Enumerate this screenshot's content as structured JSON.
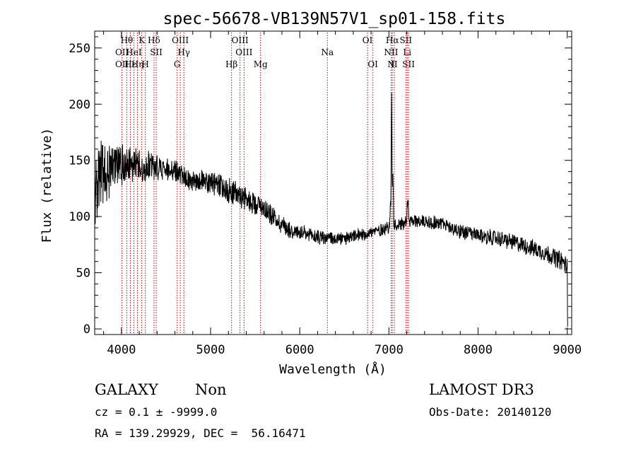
{
  "chart_data": {
    "type": "line",
    "title": "spec-56678-VB139N57V1_sp01-158.fits",
    "xlabel": "Wavelength (Å)",
    "ylabel": "Flux (relative)",
    "xlim": [
      3700,
      9050
    ],
    "ylim": [
      -5,
      265
    ],
    "x_ticks": [
      4000,
      5000,
      6000,
      7000,
      8000,
      9000
    ],
    "y_ticks": [
      0,
      50,
      100,
      150,
      200,
      250
    ],
    "continuum": [
      [
        3700,
        120
      ],
      [
        3750,
        135
      ],
      [
        3800,
        140
      ],
      [
        3850,
        142
      ],
      [
        3900,
        145
      ],
      [
        4000,
        145
      ],
      [
        4100,
        148
      ],
      [
        4200,
        145
      ],
      [
        4300,
        145
      ],
      [
        4400,
        143
      ],
      [
        4500,
        142
      ],
      [
        4600,
        140
      ],
      [
        4700,
        135
      ],
      [
        4800,
        133
      ],
      [
        4900,
        132
      ],
      [
        5000,
        130
      ],
      [
        5100,
        127
      ],
      [
        5200,
        123
      ],
      [
        5300,
        120
      ],
      [
        5400,
        115
      ],
      [
        5500,
        112
      ],
      [
        5600,
        108
      ],
      [
        5700,
        100
      ],
      [
        5800,
        93
      ],
      [
        5900,
        88
      ],
      [
        6000,
        85
      ],
      [
        6100,
        83
      ],
      [
        6200,
        82
      ],
      [
        6300,
        81
      ],
      [
        6400,
        80
      ],
      [
        6500,
        80
      ],
      [
        6600,
        82
      ],
      [
        6700,
        84
      ],
      [
        6800,
        86
      ],
      [
        6900,
        88
      ],
      [
        7000,
        91
      ],
      [
        7100,
        93
      ],
      [
        7200,
        95
      ],
      [
        7300,
        96
      ],
      [
        7400,
        96
      ],
      [
        7500,
        95
      ],
      [
        7600,
        93
      ],
      [
        7700,
        90
      ],
      [
        7800,
        87
      ],
      [
        7900,
        85
      ],
      [
        8000,
        83
      ],
      [
        8200,
        81
      ],
      [
        8400,
        77
      ],
      [
        8600,
        72
      ],
      [
        8800,
        66
      ],
      [
        8950,
        60
      ],
      [
        8990,
        56
      ]
    ],
    "noise_amplitude": [
      [
        3700,
        40
      ],
      [
        3800,
        35
      ],
      [
        3900,
        28
      ],
      [
        4000,
        22
      ],
      [
        4200,
        18
      ],
      [
        4500,
        12
      ],
      [
        4800,
        12
      ],
      [
        5200,
        14
      ],
      [
        5600,
        11
      ],
      [
        6000,
        9
      ],
      [
        6500,
        7
      ],
      [
        7000,
        7
      ],
      [
        7500,
        8
      ],
      [
        8000,
        8
      ],
      [
        8500,
        9
      ],
      [
        9000,
        10
      ]
    ],
    "emission_peaks": [
      {
        "x": 6550,
        "y": 80
      },
      {
        "x": 7015,
        "y": 110
      },
      {
        "x": 7030,
        "y": 205
      },
      {
        "x": 7045,
        "y": 140
      },
      {
        "x": 7205,
        "y": 110
      },
      {
        "x": 7215,
        "y": 115
      }
    ],
    "end_drop": [
      [
        9000,
        58
      ],
      [
        9003,
        10
      ],
      [
        9005,
        2
      ]
    ],
    "line_markers": [
      {
        "x": 4006,
        "labels": [
          {
            "text": "OII",
            "row": 2
          },
          {
            "text": "OII",
            "row": 3
          }
        ]
      },
      {
        "x": 4060,
        "labels": [
          {
            "text": "Hθ",
            "row": 1
          }
        ]
      },
      {
        "x": 4100,
        "labels": [
          {
            "text": "Hε",
            "row": 3
          }
        ]
      },
      {
        "x": 4140,
        "labels": [
          {
            "text": "HeI",
            "row": 2
          }
        ]
      },
      {
        "x": 4180,
        "labels": [
          {
            "text": "Hη",
            "row": 3
          }
        ]
      },
      {
        "x": 4228,
        "labels": [
          {
            "text": "K",
            "row": 1
          }
        ]
      },
      {
        "x": 4268,
        "labels": [
          {
            "text": "H",
            "row": 3
          }
        ]
      },
      {
        "x": 4365,
        "labels": [
          {
            "text": "Hδ",
            "row": 1
          }
        ]
      },
      {
        "x": 4390,
        "labels": [
          {
            "text": "SII",
            "row": 2
          }
        ]
      },
      {
        "x": 4625,
        "labels": [
          {
            "text": "G",
            "row": 3
          }
        ]
      },
      {
        "x": 4660,
        "labels": [
          {
            "text": "OIII",
            "row": 1
          }
        ]
      },
      {
        "x": 4700,
        "labels": [
          {
            "text": "Hγ",
            "row": 2
          }
        ]
      },
      {
        "x": 5235,
        "labels": [
          {
            "text": "Hβ",
            "row": 3
          }
        ]
      },
      {
        "x": 5330,
        "labels": [
          {
            "text": "OIII",
            "row": 1
          }
        ]
      },
      {
        "x": 5375,
        "labels": [
          {
            "text": "OIII",
            "row": 2
          }
        ]
      },
      {
        "x": 5560,
        "labels": [
          {
            "text": "Mg",
            "row": 3
          }
        ]
      },
      {
        "x": 6310,
        "labels": [
          {
            "text": "Na",
            "row": 2
          }
        ]
      },
      {
        "x": 6760,
        "labels": [
          {
            "text": "OI",
            "row": 1
          }
        ]
      },
      {
        "x": 6820,
        "labels": [
          {
            "text": "OI",
            "row": 3
          }
        ]
      },
      {
        "x": 7025,
        "labels": [
          {
            "text": "NII",
            "row": 2
          },
          {
            "text": "N",
            "row": 3
          }
        ]
      },
      {
        "x": 7038,
        "labels": [
          {
            "text": "Hα",
            "row": 1
          }
        ]
      },
      {
        "x": 7060,
        "labels": [
          {
            "text": "II",
            "row": 3
          }
        ]
      },
      {
        "x": 7190,
        "labels": [
          {
            "text": "SII",
            "row": 1
          }
        ]
      },
      {
        "x": 7205,
        "labels": [
          {
            "text": "Li",
            "row": 2
          }
        ]
      },
      {
        "x": 7220,
        "labels": [
          {
            "text": "SII",
            "row": 3
          }
        ]
      }
    ],
    "colors": {
      "spectrum": "#000000",
      "marker": "#cc0000",
      "axes": "#000000"
    }
  },
  "info": {
    "object_class": "GALAXY",
    "subclass": "Non",
    "redshift": "cz = 0.1 ± -9999.0",
    "coords": "RA = 139.29929, DEC =  56.16471",
    "survey": "LAMOST DR3",
    "obs_date": "Obs-Date: 20140120"
  }
}
